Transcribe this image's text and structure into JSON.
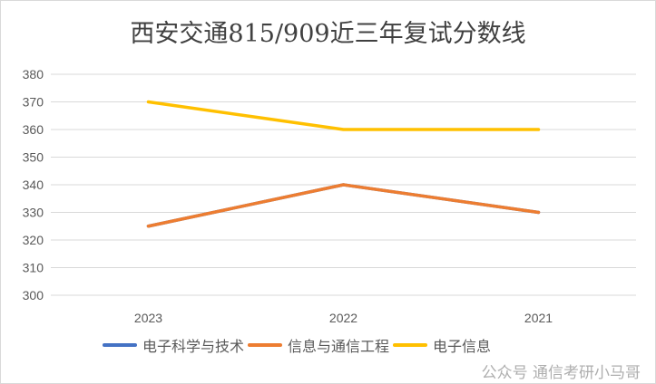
{
  "chart_data": {
    "type": "line",
    "title": "西安交通815/909近三年复试分数线",
    "categories": [
      "2023",
      "2022",
      "2021"
    ],
    "series": [
      {
        "name": "电子科学与技术",
        "values": [
          325,
          340,
          330
        ],
        "color": "#4472C4"
      },
      {
        "name": "信息与通信工程",
        "values": [
          325,
          340,
          330
        ],
        "color": "#ED7D31"
      },
      {
        "name": "电子信息",
        "values": [
          370,
          360,
          360
        ],
        "color": "#FFC000"
      }
    ],
    "ylim": [
      300,
      380
    ],
    "yticks": [
      300,
      310,
      320,
      330,
      340,
      350,
      360,
      370,
      380
    ],
    "grid": true,
    "legend": "bottom"
  },
  "watermark": "公众号 通信考研小马哥"
}
